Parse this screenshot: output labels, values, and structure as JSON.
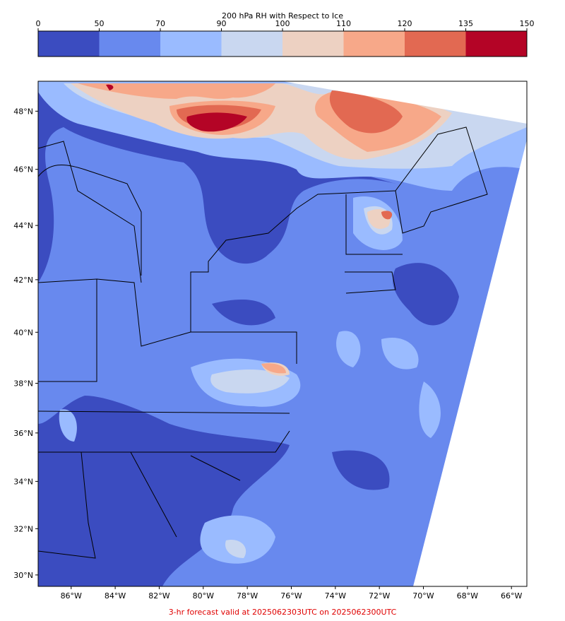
{
  "colorbar": {
    "title": "200 hPa RH with Respect to Ice",
    "ticks": [
      0,
      50,
      70,
      90,
      100,
      110,
      120,
      135,
      150
    ],
    "colors": [
      "#3b4cc0",
      "#6889ee",
      "#9abbff",
      "#c9d7f0",
      "#edd1c2",
      "#f7a889",
      "#e26952",
      "#b40426"
    ]
  },
  "map": {
    "xlim": [
      -87.5,
      -65.3
    ],
    "ylim": [
      29.5,
      49
    ],
    "xticks": [
      {
        "value": -86,
        "label": "86°W"
      },
      {
        "value": -84,
        "label": "84°W"
      },
      {
        "value": -82,
        "label": "82°W"
      },
      {
        "value": -80,
        "label": "80°W"
      },
      {
        "value": -78,
        "label": "78°W"
      },
      {
        "value": -76,
        "label": "76°W"
      },
      {
        "value": -74,
        "label": "74°W"
      },
      {
        "value": -72,
        "label": "72°W"
      },
      {
        "value": -70,
        "label": "70°W"
      },
      {
        "value": -68,
        "label": "68°W"
      },
      {
        "value": -66,
        "label": "66°W"
      }
    ],
    "yticks": [
      {
        "value": 30,
        "label": "30°N"
      },
      {
        "value": 32,
        "label": "32°N"
      },
      {
        "value": 34,
        "label": "34°N"
      },
      {
        "value": 36,
        "label": "36°N"
      },
      {
        "value": 38,
        "label": "38°N"
      },
      {
        "value": 40,
        "label": "40°N"
      },
      {
        "value": 42,
        "label": "42°N"
      },
      {
        "value": 44,
        "label": "44°N"
      },
      {
        "value": 46,
        "label": "46°N"
      },
      {
        "value": 48,
        "label": "48°N"
      }
    ]
  },
  "footer": "3-hr forecast valid at 2025062303UTC on 2025062300UTC"
}
